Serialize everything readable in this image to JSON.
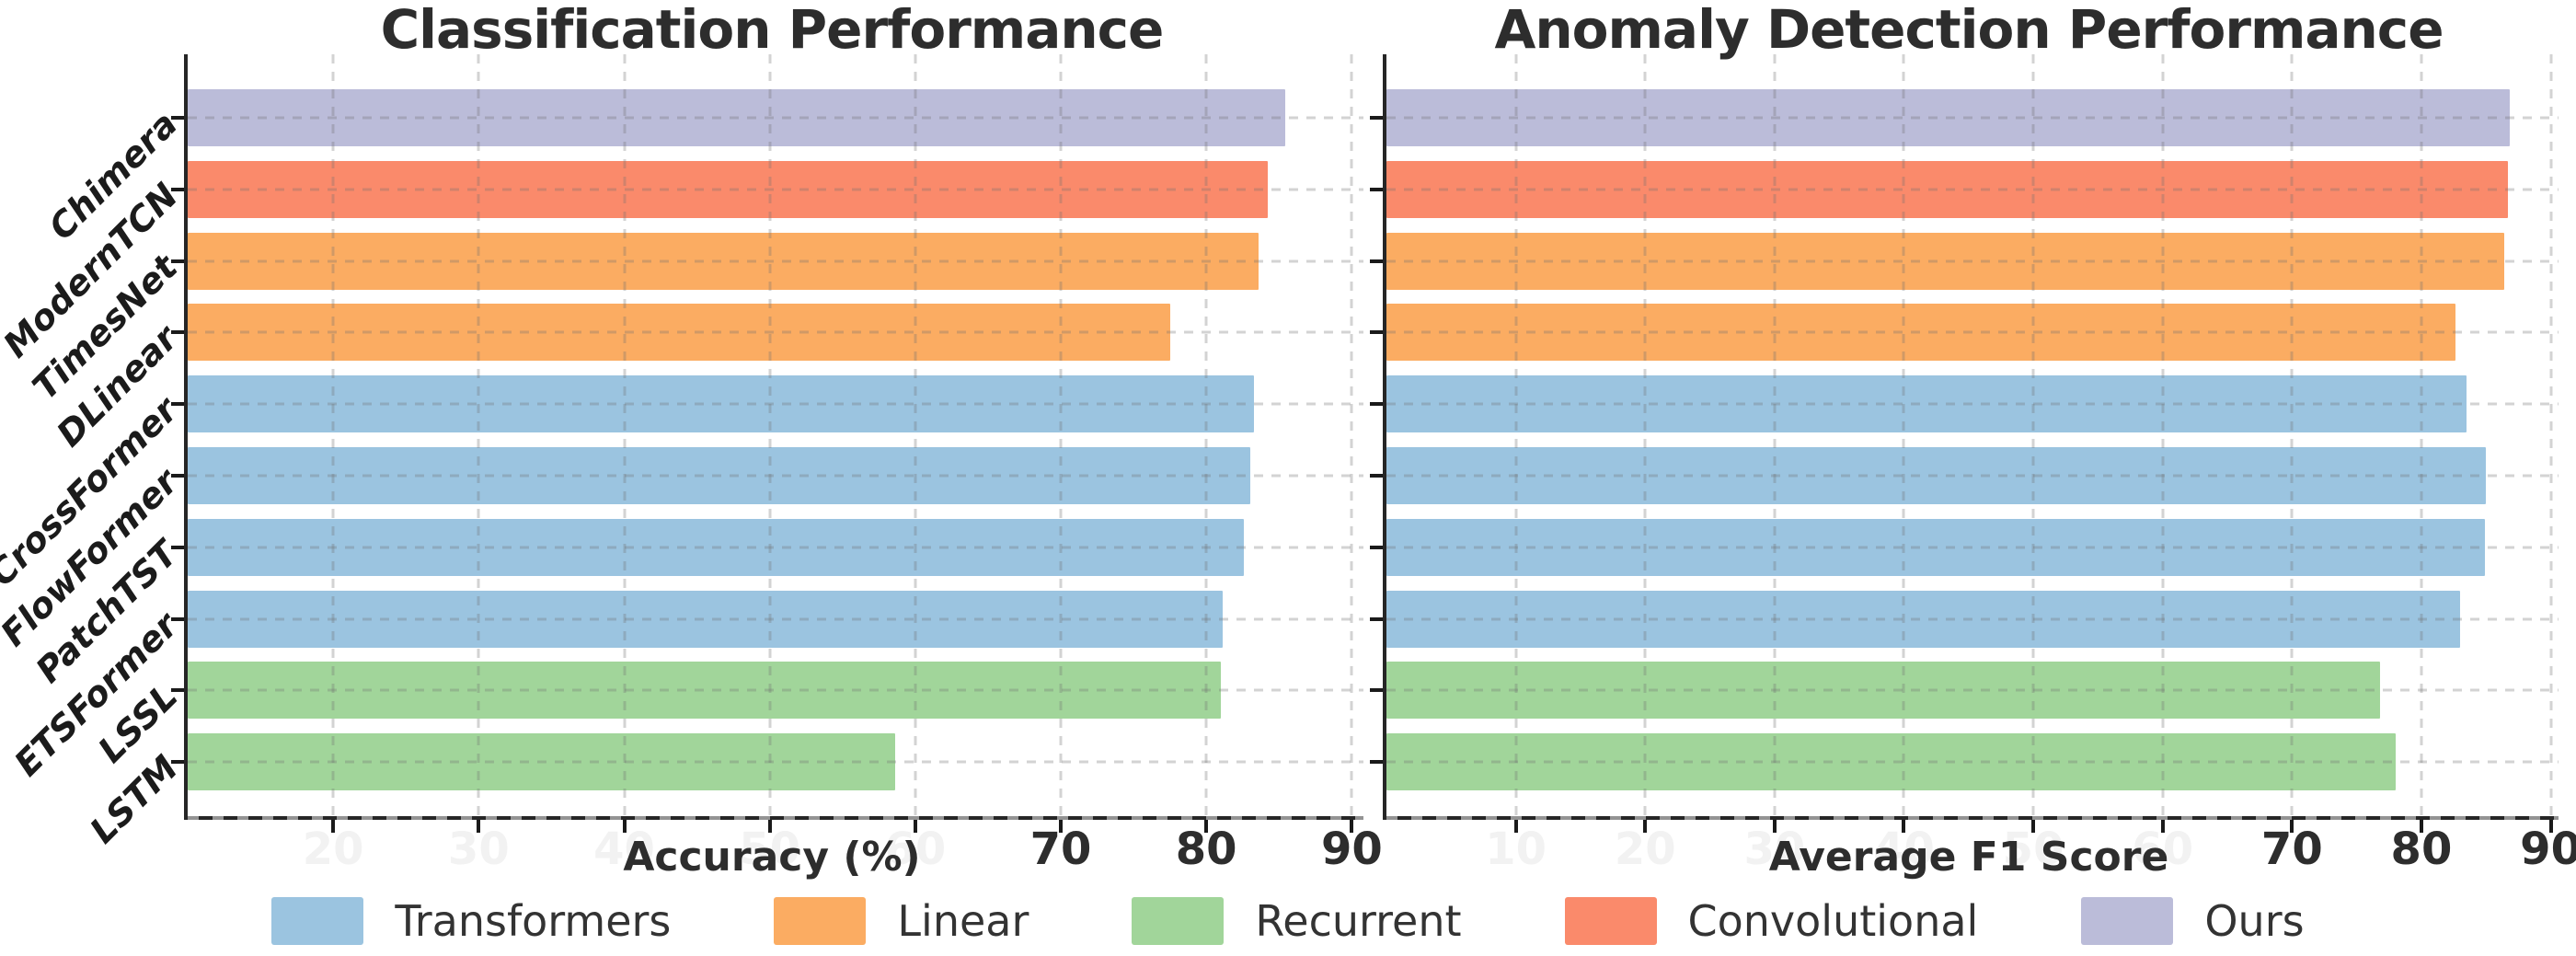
{
  "figure": {
    "background": "#ffffff"
  },
  "colors": {
    "Transformers": "#9bc4e0",
    "Linear": "#fbac62",
    "Recurrent": "#a1d59a",
    "Convolutional": "#fa8a6b",
    "Ours": "#bbbcd9",
    "axis": "#262626",
    "grid": "#cdcdcd",
    "title_text": "#2d2d2d",
    "tick_label": "#2d2d2d",
    "faint_tick_label": "#f2f2f2",
    "category_label": "#1b1b1b",
    "legend_text": "#333333"
  },
  "legend": {
    "items": [
      {
        "label": "Transformers",
        "color_key": "Transformers"
      },
      {
        "label": "Linear",
        "color_key": "Linear"
      },
      {
        "label": "Recurrent",
        "color_key": "Recurrent"
      },
      {
        "label": "Convolutional",
        "color_key": "Convolutional"
      },
      {
        "label": "Ours",
        "color_key": "Ours"
      }
    ]
  },
  "chart_data": [
    {
      "type": "bar",
      "orientation": "horizontal",
      "title": "Classification Performance",
      "xlabel": "Accuracy (%)",
      "categories": [
        "Chimera",
        "ModernTCN",
        "TimesNet",
        "DLinear",
        "CrossFormer",
        "FlowFormer",
        "PatchTST",
        "ETSFormer",
        "LSSL",
        "LSTM"
      ],
      "values": [
        85.4,
        84.2,
        83.6,
        77.5,
        83.3,
        83.0,
        82.6,
        81.1,
        81.0,
        58.6
      ],
      "groups": [
        "Ours",
        "Convolutional",
        "Linear",
        "Linear",
        "Transformers",
        "Transformers",
        "Transformers",
        "Transformers",
        "Recurrent",
        "Recurrent"
      ],
      "xlim": [
        10,
        90.8
      ],
      "xticks": [
        20,
        30,
        40,
        50,
        60,
        70,
        80,
        90
      ],
      "visible_xtick_labels": [
        70,
        80,
        90
      ],
      "grid": "dashed-both-axes",
      "show_category_labels": true
    },
    {
      "type": "bar",
      "orientation": "horizontal",
      "title": "Anomaly Detection Performance",
      "xlabel": "Average F1 Score",
      "categories": [
        "Chimera",
        "ModernTCN",
        "TimesNet",
        "DLinear",
        "CrossFormer",
        "FlowFormer",
        "PatchTST",
        "ETSFormer",
        "LSSL",
        "LSTM"
      ],
      "values": [
        86.8,
        86.7,
        86.4,
        82.6,
        83.5,
        85.0,
        84.9,
        83.0,
        76.8,
        78.0
      ],
      "groups": [
        "Ours",
        "Convolutional",
        "Linear",
        "Linear",
        "Transformers",
        "Transformers",
        "Transformers",
        "Transformers",
        "Recurrent",
        "Recurrent"
      ],
      "xlim": [
        0,
        90.6
      ],
      "xticks": [
        10,
        20,
        30,
        40,
        50,
        60,
        70,
        80,
        90
      ],
      "visible_xtick_labels": [
        70,
        80,
        90
      ],
      "grid": "dashed-both-axes",
      "show_category_labels": false
    }
  ]
}
